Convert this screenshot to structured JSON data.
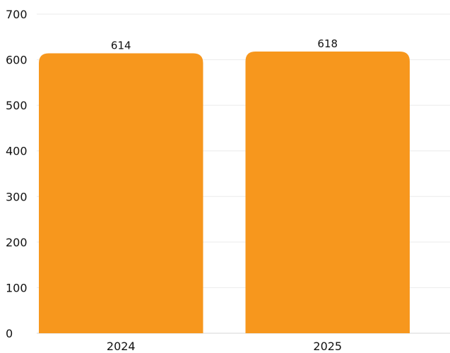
{
  "chart_data": {
    "type": "bar",
    "categories": [
      "2024",
      "2025"
    ],
    "values": [
      614,
      618
    ],
    "data_labels": [
      "614",
      "618"
    ],
    "ylim": [
      0,
      700
    ],
    "yticks": [
      "0",
      "100",
      "200",
      "300",
      "400",
      "500",
      "600",
      "700"
    ],
    "grid": true,
    "bar_color": "#F7971D",
    "title": "",
    "xlabel": "",
    "ylabel": ""
  }
}
